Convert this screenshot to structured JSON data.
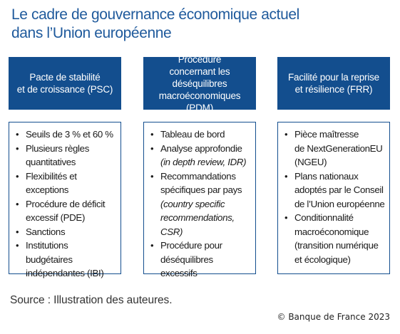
{
  "title": [
    "Le cadre de gouvernance économique actuel",
    "dans l’Union européenne"
  ],
  "columns": [
    {
      "header": [
        "Pacte de stabilité",
        "et de croissance (PSC)"
      ],
      "items": [
        [
          "Seuils de 3 % et 60 %"
        ],
        [
          "Plusieurs règles",
          "quantitatives"
        ],
        [
          "Flexibilités et exceptions"
        ],
        [
          "Procédure de déficit",
          "excessif (PDE)"
        ],
        [
          "Sanctions"
        ],
        [
          "Institutions budgétaires",
          "indépendantes (IBI)"
        ]
      ]
    },
    {
      "header": [
        "Procédure",
        "concernant les déséquilibres",
        "macroéconomiques (PDM)"
      ],
      "items": [
        [
          "Tableau de bord"
        ],
        [
          "Analyse approfondie",
          "(in depth review, IDR)"
        ],
        [
          "Recommandations",
          "spécifiques par pays",
          "(country specific",
          "recommendations, CSR)"
        ],
        [
          "Procédure pour",
          "déséquilibres excessifs"
        ]
      ]
    },
    {
      "header": [
        "Facilité pour la reprise",
        "et résilience (FRR)"
      ],
      "items": [
        [
          "Pièce maîtresse",
          "de NextGenerationEU",
          "(NGEU)"
        ],
        [
          "Plans nationaux",
          "adoptés par le Conseil",
          "de l’Union européenne"
        ],
        [
          "Conditionnalité",
          "macroéconomique",
          "(transition numérique",
          "et écologique)"
        ]
      ]
    }
  ],
  "source": "Source : Illustration des auteures.",
  "copyright": "© Banque de France 2023",
  "colors": {
    "title": "#1f5a9c",
    "header_bg": "#134e8e",
    "border": "#134e8e"
  },
  "bullet_symbol": "•"
}
